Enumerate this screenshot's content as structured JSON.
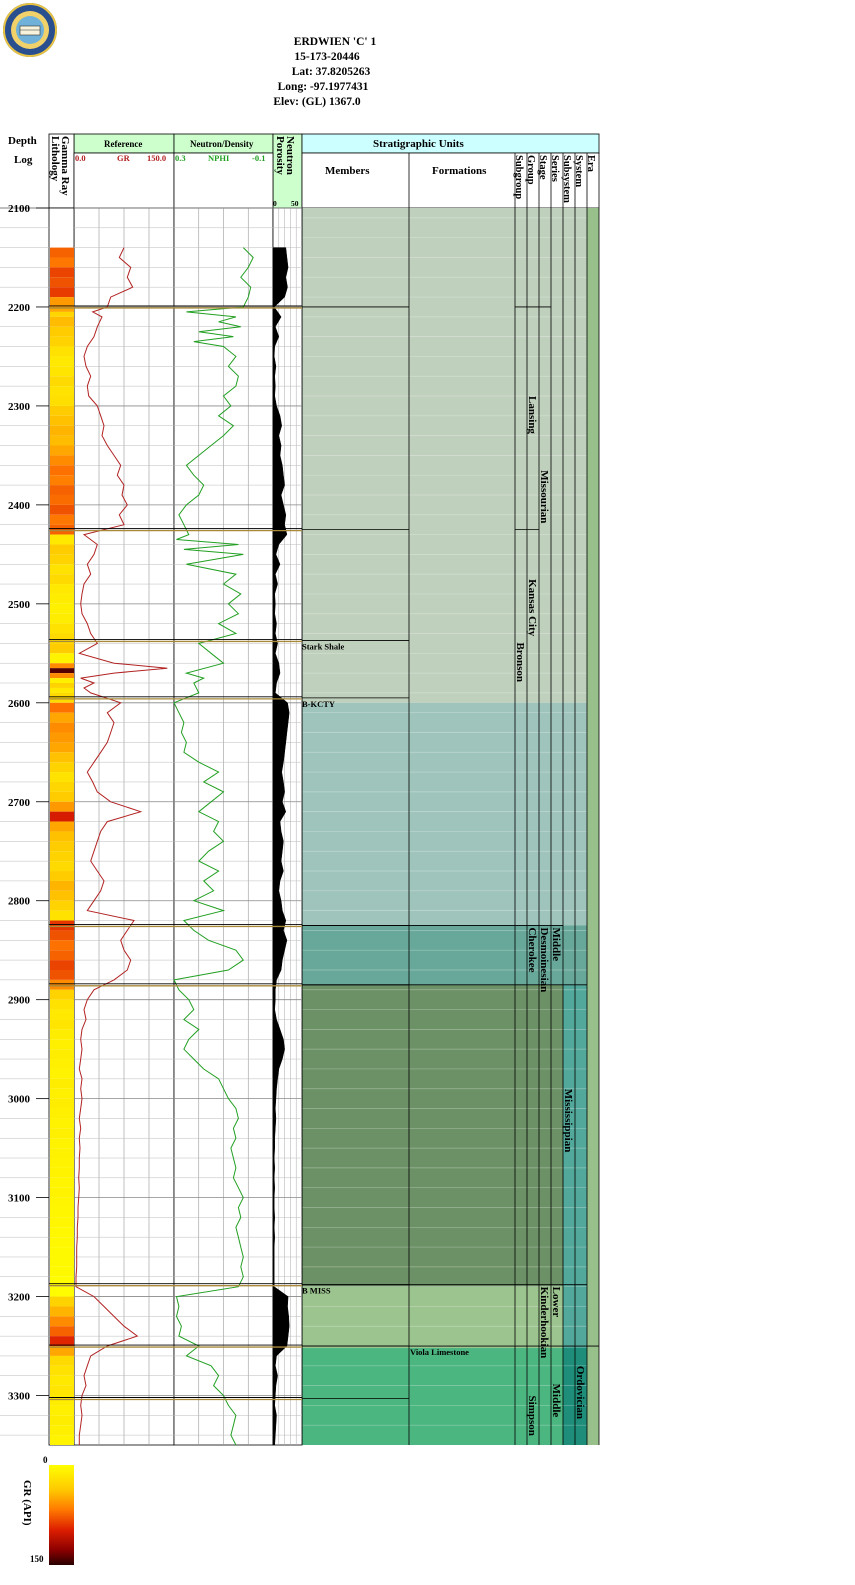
{
  "header": {
    "lines": [
      "ERDWIEN 'C' 1",
      "15-173-20446",
      "Lat: 37.8205263",
      "Long: -97.1977431",
      "Elev: (GL) 1367.0"
    ]
  },
  "logo": {
    "icon": "kansas-geological-survey-seal",
    "text": "KANSAS GEOLOGICAL SURVEY"
  },
  "columns": {
    "depth_title": "Depth",
    "depth_sub": "Log",
    "lithology": "Lithology",
    "gamma_ray": "Gamma Ray",
    "reference": "Reference",
    "neutron_density": "Neutron/Density",
    "porosity": "Porosity",
    "neutron": "Neutron",
    "strat_title": "Stratigraphic Units",
    "members": "Members",
    "formations": "Formations",
    "ranks": [
      "Subgroup",
      "Group",
      "Stage",
      "Series",
      "Subsystem",
      "System",
      "Era"
    ]
  },
  "scales": {
    "gr": {
      "name": "GR",
      "min": "0.0",
      "max": "150.0",
      "color": "#b22222"
    },
    "nphi": {
      "name": "NPHI",
      "left": "0.3",
      "right": "-0.1",
      "color": "#22a022"
    },
    "porosity": {
      "min": "0",
      "max": "50"
    }
  },
  "depth_labels": [
    "2100",
    "2200",
    "2300",
    "2400",
    "2500",
    "2600",
    "2700",
    "2800",
    "2900",
    "3000",
    "3100",
    "3200",
    "3300"
  ],
  "strat_labels": {
    "members": [
      "Stark Shale"
    ],
    "tops": [
      "B-KCTY",
      "B MISS"
    ],
    "formations": [
      "Viola Limestone"
    ],
    "subgroups": [
      "Bronson"
    ],
    "groups": [
      "Lansing",
      "Kansas City",
      "Cherokee",
      "Simpson"
    ],
    "stages": [
      "Missourian",
      "Desmoinesian",
      "Kinderhookian"
    ],
    "series": [
      "Middle",
      "Lower",
      "Middle"
    ],
    "subsystems": [
      "Mississippian"
    ],
    "systems": [
      "Ordovician"
    ]
  },
  "colors": {
    "missourian": "#bfd0bc",
    "b_kcty": "#9ec4bb",
    "cherokee": "#68a89a",
    "mississippian": "#6c9166",
    "kinderhook": "#9cc48f",
    "ordovician": "#4cb681",
    "era": "#97c08b",
    "system": "#52a89a"
  },
  "legend": {
    "title": "GR (API)",
    "min": "0",
    "max": "150"
  },
  "chart_data": {
    "type": "line",
    "depth_range": [
      2100,
      3350
    ],
    "x_unit": "ft",
    "series": [
      {
        "name": "GR",
        "range": [
          0,
          150
        ],
        "depth": [
          2140,
          2150,
          2160,
          2170,
          2180,
          2190,
          2200,
          2205,
          2210,
          2220,
          2230,
          2240,
          2250,
          2260,
          2270,
          2280,
          2290,
          2300,
          2310,
          2320,
          2330,
          2340,
          2350,
          2360,
          2370,
          2380,
          2390,
          2400,
          2410,
          2420,
          2430,
          2440,
          2450,
          2460,
          2470,
          2480,
          2490,
          2500,
          2510,
          2520,
          2530,
          2540,
          2550,
          2560,
          2565,
          2570,
          2575,
          2580,
          2585,
          2590,
          2600,
          2610,
          2620,
          2630,
          2640,
          2650,
          2660,
          2670,
          2680,
          2690,
          2700,
          2710,
          2720,
          2730,
          2740,
          2750,
          2760,
          2770,
          2780,
          2790,
          2800,
          2810,
          2820,
          2830,
          2840,
          2850,
          2860,
          2870,
          2880,
          2890,
          2900,
          2910,
          2920,
          2930,
          2940,
          2950,
          2960,
          2970,
          2980,
          2990,
          3000,
          3010,
          3020,
          3030,
          3040,
          3050,
          3060,
          3070,
          3080,
          3090,
          3100,
          3110,
          3120,
          3130,
          3140,
          3150,
          3160,
          3170,
          3180,
          3190,
          3200,
          3210,
          3220,
          3230,
          3240,
          3250,
          3260,
          3270,
          3280,
          3290,
          3300,
          3310,
          3320,
          3330,
          3340,
          3350
        ],
        "values": [
          75,
          68,
          85,
          80,
          88,
          55,
          50,
          28,
          42,
          35,
          30,
          20,
          15,
          18,
          25,
          20,
          22,
          35,
          40,
          45,
          42,
          50,
          60,
          70,
          65,
          75,
          72,
          80,
          68,
          75,
          15,
          35,
          30,
          20,
          25,
          15,
          12,
          10,
          12,
          20,
          25,
          35,
          8,
          60,
          140,
          60,
          10,
          30,
          15,
          25,
          70,
          50,
          60,
          55,
          50,
          40,
          30,
          20,
          28,
          35,
          55,
          100,
          50,
          40,
          35,
          30,
          25,
          35,
          45,
          40,
          30,
          20,
          90,
          80,
          70,
          75,
          85,
          80,
          60,
          30,
          20,
          15,
          18,
          12,
          10,
          12,
          10,
          8,
          12,
          10,
          12,
          10,
          8,
          10,
          8,
          9,
          8,
          8,
          7,
          8,
          7,
          6,
          6,
          5,
          5,
          4,
          4,
          4,
          3,
          3,
          30,
          45,
          60,
          75,
          95,
          50,
          25,
          20,
          15,
          18,
          12,
          10,
          12,
          10,
          8,
          8
        ]
      },
      {
        "name": "NPHI",
        "range": [
          0.3,
          -0.1
        ],
        "depth": [
          2140,
          2150,
          2160,
          2170,
          2180,
          2190,
          2200,
          2205,
          2210,
          2215,
          2220,
          2225,
          2230,
          2235,
          2240,
          2250,
          2260,
          2270,
          2280,
          2290,
          2300,
          2310,
          2320,
          2330,
          2340,
          2350,
          2360,
          2370,
          2380,
          2390,
          2400,
          2410,
          2420,
          2430,
          2435,
          2440,
          2445,
          2450,
          2460,
          2470,
          2480,
          2490,
          2500,
          2510,
          2520,
          2530,
          2540,
          2550,
          2560,
          2570,
          2575,
          2580,
          2590,
          2600,
          2610,
          2620,
          2630,
          2640,
          2650,
          2660,
          2670,
          2680,
          2690,
          2700,
          2710,
          2720,
          2730,
          2740,
          2750,
          2760,
          2770,
          2780,
          2790,
          2800,
          2810,
          2820,
          2830,
          2840,
          2850,
          2860,
          2870,
          2880,
          2890,
          2900,
          2910,
          2920,
          2930,
          2940,
          2950,
          2960,
          2970,
          2980,
          2990,
          3000,
          3010,
          3020,
          3030,
          3040,
          3050,
          3060,
          3070,
          3080,
          3090,
          3100,
          3110,
          3120,
          3130,
          3140,
          3150,
          3160,
          3170,
          3180,
          3190,
          3200,
          3210,
          3220,
          3230,
          3240,
          3250,
          3260,
          3270,
          3280,
          3290,
          3300,
          3310,
          3320,
          3330,
          3340,
          3350
        ],
        "values": [
          0.02,
          -0.02,
          0.0,
          0.03,
          -0.01,
          0.0,
          0.02,
          0.25,
          0.05,
          0.12,
          0.03,
          0.2,
          0.06,
          0.22,
          0.1,
          0.05,
          0.08,
          0.04,
          0.05,
          0.1,
          0.07,
          0.12,
          0.06,
          0.1,
          0.15,
          0.2,
          0.25,
          0.22,
          0.18,
          0.2,
          0.25,
          0.28,
          0.26,
          0.24,
          0.29,
          0.04,
          0.26,
          0.02,
          0.25,
          0.05,
          0.1,
          0.03,
          0.08,
          0.04,
          0.12,
          0.05,
          0.2,
          0.15,
          0.1,
          0.25,
          0.18,
          0.22,
          0.2,
          0.3,
          0.28,
          0.26,
          0.27,
          0.25,
          0.26,
          0.2,
          0.12,
          0.18,
          0.1,
          0.15,
          0.2,
          0.12,
          0.14,
          0.1,
          0.16,
          0.2,
          0.12,
          0.18,
          0.14,
          0.22,
          0.1,
          0.26,
          0.22,
          0.16,
          0.05,
          0.02,
          0.08,
          0.3,
          0.28,
          0.24,
          0.22,
          0.26,
          0.2,
          0.24,
          0.26,
          0.22,
          0.18,
          0.12,
          0.1,
          0.08,
          0.05,
          0.04,
          0.06,
          0.05,
          0.07,
          0.06,
          0.05,
          0.06,
          0.04,
          0.02,
          0.04,
          0.03,
          0.05,
          0.04,
          0.03,
          0.02,
          0.03,
          0.02,
          0.04,
          0.29,
          0.28,
          0.29,
          0.27,
          0.28,
          0.2,
          0.25,
          0.15,
          0.12,
          0.14,
          0.1,
          0.08,
          0.05,
          0.06,
          0.07,
          0.05
        ]
      },
      {
        "name": "Neutron Porosity",
        "range": [
          0,
          50
        ],
        "depth": [
          2140,
          2150,
          2160,
          2170,
          2180,
          2190,
          2200,
          2210,
          2220,
          2230,
          2240,
          2250,
          2260,
          2270,
          2280,
          2290,
          2300,
          2310,
          2320,
          2330,
          2340,
          2350,
          2360,
          2370,
          2380,
          2390,
          2400,
          2410,
          2420,
          2430,
          2440,
          2450,
          2460,
          2470,
          2480,
          2490,
          2500,
          2510,
          2520,
          2530,
          2540,
          2550,
          2560,
          2570,
          2580,
          2590,
          2600,
          2610,
          2620,
          2630,
          2640,
          2650,
          2660,
          2670,
          2680,
          2690,
          2700,
          2710,
          2720,
          2730,
          2740,
          2750,
          2760,
          2770,
          2780,
          2790,
          2800,
          2810,
          2820,
          2830,
          2840,
          2850,
          2860,
          2870,
          2880,
          2890,
          2900,
          2910,
          2920,
          2930,
          2940,
          2950,
          2960,
          2970,
          2980,
          2990,
          3000,
          3010,
          3020,
          3030,
          3040,
          3050,
          3060,
          3070,
          3080,
          3090,
          3100,
          3110,
          3120,
          3130,
          3140,
          3150,
          3160,
          3170,
          3180,
          3190,
          3200,
          3210,
          3220,
          3230,
          3240,
          3250,
          3260,
          3270,
          3280,
          3290,
          3300,
          3310,
          3320,
          3330,
          3340,
          3350
        ],
        "values": [
          22,
          24,
          26,
          22,
          25,
          20,
          2,
          14,
          4,
          10,
          3,
          2,
          5,
          3,
          4,
          3,
          6,
          12,
          15,
          10,
          14,
          12,
          16,
          18,
          20,
          14,
          18,
          22,
          20,
          24,
          10,
          5,
          12,
          4,
          8,
          3,
          4,
          3,
          6,
          4,
          8,
          4,
          10,
          12,
          6,
          4,
          25,
          28,
          26,
          24,
          22,
          20,
          18,
          15,
          18,
          20,
          16,
          22,
          12,
          14,
          18,
          16,
          14,
          18,
          12,
          10,
          14,
          16,
          22,
          18,
          24,
          20,
          16,
          14,
          6,
          4,
          4,
          3,
          6,
          12,
          18,
          20,
          16,
          10,
          8,
          6,
          5,
          4,
          5,
          4,
          3,
          3,
          2,
          3,
          2,
          3,
          2,
          2,
          3,
          2,
          3,
          2,
          2,
          2,
          2,
          2,
          26,
          25,
          27,
          28,
          26,
          24,
          6,
          4,
          8,
          5,
          4,
          3,
          6,
          5,
          4,
          3
        ]
      }
    ]
  }
}
